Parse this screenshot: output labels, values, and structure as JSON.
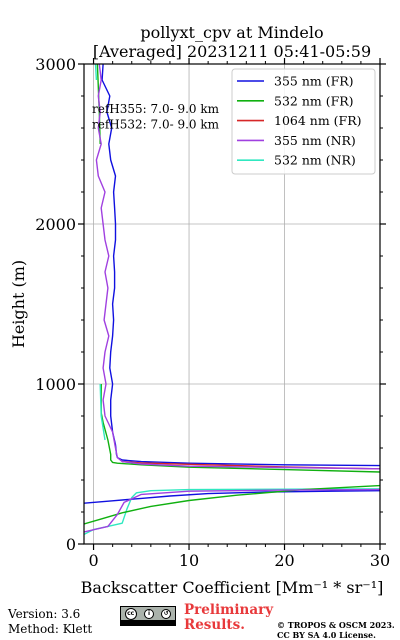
{
  "chart_data": {
    "type": "line",
    "title": [
      "pollyxt_cpv at Mindelo",
      "[Averaged] 20231211 05:41-05:59"
    ],
    "xlabel": "Backscatter Coefficient [Mm⁻¹ * sr⁻¹]",
    "ylabel": "Height (m)",
    "xlim": [
      -1,
      30
    ],
    "ylim": [
      0,
      3000
    ],
    "xticks": [
      0,
      10,
      20,
      30
    ],
    "yticks": [
      0,
      1000,
      2000,
      3000
    ],
    "grid": true,
    "legend_position": "top-right",
    "annotations": [
      "refH355:  7.0- 9.0 km",
      "refH532:  7.0- 9.0 km"
    ],
    "series": [
      {
        "name": "355 nm (FR)",
        "color": "#1010e0",
        "points": [
          [
            30,
            490
          ],
          [
            20,
            495
          ],
          [
            10,
            505
          ],
          [
            5,
            515
          ],
          [
            3,
            525
          ],
          [
            2.5,
            540
          ],
          [
            2.4,
            560
          ],
          [
            2.3,
            620
          ],
          [
            2.0,
            700
          ],
          [
            1.8,
            800
          ],
          [
            1.8,
            900
          ],
          [
            2.0,
            1000
          ],
          [
            1.7,
            1100
          ],
          [
            1.8,
            1200
          ],
          [
            2.0,
            1300
          ],
          [
            2.1,
            1400
          ],
          [
            2.0,
            1500
          ],
          [
            2.2,
            1600
          ],
          [
            2.2,
            1700
          ],
          [
            2.1,
            1800
          ],
          [
            2.3,
            1900
          ],
          [
            2.3,
            2000
          ],
          [
            2.2,
            2100
          ],
          [
            2.1,
            2200
          ],
          [
            2.3,
            2300
          ],
          [
            1.8,
            2400
          ],
          [
            1.6,
            2500
          ],
          [
            1.9,
            2600
          ],
          [
            1.4,
            2700
          ],
          [
            1.7,
            2800
          ],
          [
            0.9,
            2900
          ],
          [
            1.0,
            3000
          ]
        ]
      },
      {
        "name": "532 nm (FR)",
        "color": "#10b010",
        "points": [
          [
            30,
            450
          ],
          [
            20,
            465
          ],
          [
            10,
            480
          ],
          [
            5,
            495
          ],
          [
            2.5,
            505
          ],
          [
            2.0,
            510
          ],
          [
            1.8,
            525
          ],
          [
            1.8,
            560
          ],
          [
            1.5,
            650
          ],
          [
            1.0,
            760
          ],
          [
            0.8,
            820
          ],
          [
            0.8,
            1000
          ],
          [
            0.8,
            1500
          ],
          [
            0.9,
            2000
          ],
          [
            0.7,
            2500
          ],
          [
            0.6,
            2700
          ],
          [
            0.4,
            3000
          ]
        ]
      },
      {
        "name": "1064 nm (FR)",
        "color": "#d62728",
        "points": [
          [
            30,
            470
          ],
          [
            25,
            475
          ],
          [
            20,
            482
          ],
          [
            15,
            490
          ],
          [
            10,
            498
          ],
          [
            5,
            507
          ],
          [
            3,
            515
          ]
        ]
      },
      {
        "name": "355 nm (NR)",
        "color": "#a040e0",
        "points": [
          [
            30,
            470
          ],
          [
            20,
            478
          ],
          [
            10,
            486
          ],
          [
            5,
            500
          ],
          [
            3,
            515
          ],
          [
            2.5,
            540
          ],
          [
            2.3,
            600
          ],
          [
            2.0,
            700
          ],
          [
            1.2,
            800
          ],
          [
            1.0,
            900
          ],
          [
            1.3,
            1000
          ],
          [
            1.0,
            1100
          ],
          [
            1.2,
            1200
          ],
          [
            1.6,
            1300
          ],
          [
            1.1,
            1400
          ],
          [
            1.3,
            1500
          ],
          [
            1.5,
            1600
          ],
          [
            1.2,
            1700
          ],
          [
            1.6,
            1800
          ],
          [
            1.2,
            1900
          ],
          [
            1.0,
            2000
          ],
          [
            0.8,
            2100
          ],
          [
            1.2,
            2200
          ],
          [
            0.5,
            2300
          ],
          [
            0.3,
            2400
          ],
          [
            0.8,
            2500
          ],
          [
            0.5,
            2600
          ],
          [
            0.7,
            2700
          ],
          [
            0.5,
            2800
          ],
          [
            0.8,
            2900
          ],
          [
            0.6,
            3000
          ]
        ]
      },
      {
        "name": "532 nm (NR)",
        "color": "#30e8c0",
        "points": [
          [
            30,
            345
          ],
          [
            10,
            340
          ],
          [
            6,
            333
          ],
          [
            4.5,
            320
          ],
          [
            4.0,
            290
          ],
          [
            3.5,
            220
          ],
          [
            3.0,
            130
          ],
          [
            1.5,
            110
          ],
          [
            0.0,
            90
          ],
          [
            -1,
            60
          ],
          [
            1.2,
            650
          ],
          [
            0.8,
            800
          ],
          [
            0.7,
            1000
          ],
          [
            0.6,
            1500
          ],
          [
            0.8,
            2000
          ],
          [
            0.5,
            2500
          ],
          [
            0.3,
            2900
          ],
          [
            0.2,
            3000
          ]
        ]
      }
    ],
    "near_field_low": [
      {
        "name": "355 nm (FR)",
        "color": "#1010e0",
        "points": [
          [
            -1,
            255
          ],
          [
            2,
            270
          ],
          [
            5,
            285
          ],
          [
            8,
            300
          ],
          [
            12,
            315
          ],
          [
            18,
            325
          ],
          [
            25,
            330
          ],
          [
            30,
            333
          ]
        ]
      },
      {
        "name": "532 nm (FR)",
        "color": "#10b010",
        "points": [
          [
            -1,
            125
          ],
          [
            1,
            160
          ],
          [
            3,
            195
          ],
          [
            6,
            235
          ],
          [
            10,
            272
          ],
          [
            15,
            305
          ],
          [
            22,
            340
          ],
          [
            30,
            365
          ]
        ]
      },
      {
        "name": "355 nm (NR)",
        "color": "#a040e0",
        "points": [
          [
            -1,
            75
          ],
          [
            1.5,
            110
          ],
          [
            2.5,
            185
          ],
          [
            3.2,
            260
          ],
          [
            5,
            310
          ],
          [
            10,
            330
          ],
          [
            20,
            337
          ],
          [
            30,
            340
          ]
        ]
      }
    ]
  },
  "footer": {
    "version": "Version: 3.6",
    "method": "Method: Klett",
    "cc_label": "BY SA",
    "prelim_line1": "Preliminary",
    "prelim_line2": "Results.",
    "copyright_line1": "© TROPOS & OSCM 2023.",
    "copyright_line2": "CC BY SA 4.0 License."
  }
}
